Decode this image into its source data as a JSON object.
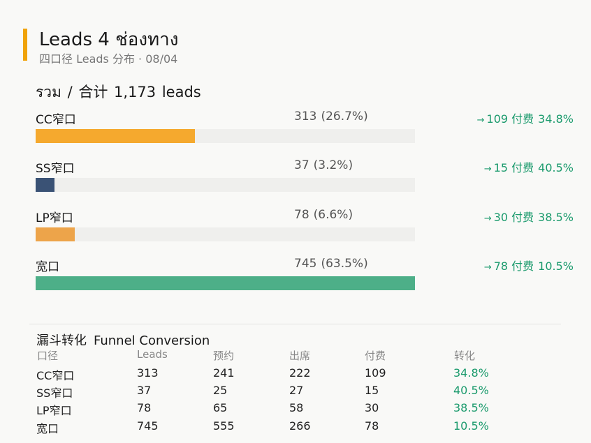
{
  "header": {
    "title": "Leads 4 ช่องทาง",
    "subtitle": "四口径 Leads 分布 · 08/04",
    "accent_color": "#f0a30a"
  },
  "summary": {
    "label": "รวม / 合计",
    "total": "1,173",
    "unit": "leads"
  },
  "channels": [
    {
      "name": "CC窄口",
      "count": "313",
      "pct": "(26.7%)",
      "share": 0.267,
      "color": "#f5a92e",
      "paid": "109 付费",
      "rate": "34.8%"
    },
    {
      "name": "SS窄口",
      "count": "37",
      "pct": "(3.2%)",
      "share": 0.032,
      "color": "#3a5275",
      "paid": "15 付费",
      "rate": "40.5%"
    },
    {
      "name": "LP窄口",
      "count": "78",
      "pct": "(6.6%)",
      "share": 0.066,
      "color": "#eda44a",
      "paid": "30 付费",
      "rate": "38.5%"
    },
    {
      "name": "宽口",
      "count": "745",
      "pct": "(63.5%)",
      "share": 0.635,
      "color": "#4daf88",
      "paid": "78 付费",
      "rate": "10.5%"
    }
  ],
  "funnel": {
    "title_cn": "漏斗转化",
    "title_en": "Funnel Conversion",
    "headers": [
      "口径",
      "Leads",
      "预约",
      "出席",
      "付费",
      "转化"
    ],
    "rows": [
      [
        "CC窄口",
        "313",
        "241",
        "222",
        "109",
        "34.8%"
      ],
      [
        "SS窄口",
        "37",
        "25",
        "27",
        "15",
        "40.5%"
      ],
      [
        "LP窄口",
        "78",
        "65",
        "58",
        "30",
        "38.5%"
      ],
      [
        "宽口",
        "745",
        "555",
        "266",
        "78",
        "10.5%"
      ]
    ]
  },
  "colors": {
    "conversion_green": "#1a9a6c",
    "track": "#efefed"
  }
}
